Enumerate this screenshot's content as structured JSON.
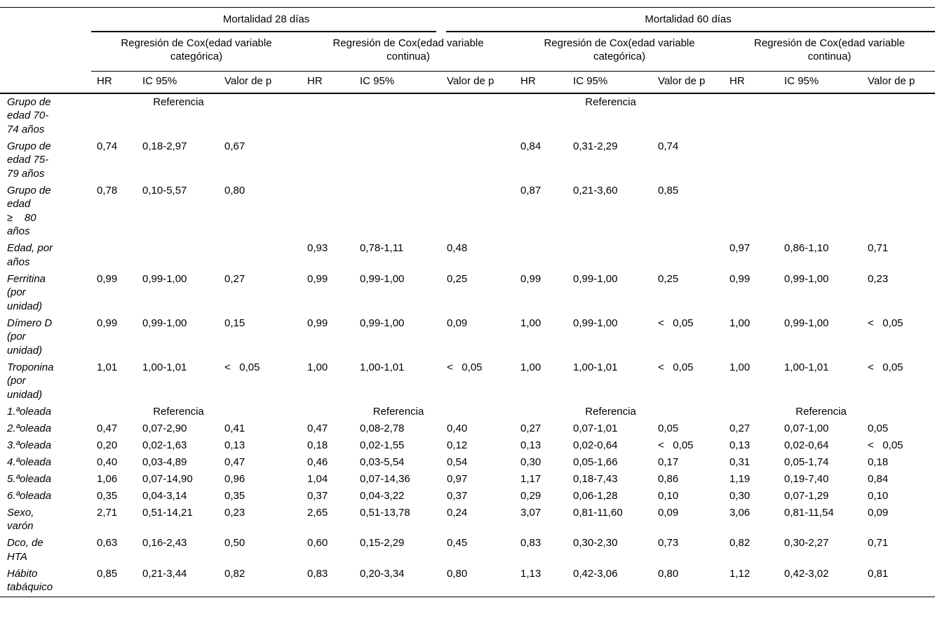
{
  "colors": {
    "text": "#000000",
    "background": "#ffffff",
    "rule": "#000000"
  },
  "table": {
    "mortality_groups": [
      "Mortalidad 28 días",
      "Mortalidad 60 días"
    ],
    "model_groups": [
      "Regresión de Cox(edad variable\ncategórica)",
      "Regresión de Cox(edad variable\ncontinua)"
    ],
    "col_headers": [
      "HR",
      "IC 95%",
      "Valor de p"
    ],
    "rows": [
      {
        "label": "Grupo de\nedad 70-\n74 años",
        "cells": [
          "",
          "Referencia",
          "",
          "",
          "",
          "",
          "",
          "Referencia",
          "",
          "",
          "",
          ""
        ]
      },
      {
        "label": "Grupo de\nedad 75-\n79 años",
        "cells": [
          "0,74",
          "0,18-2,97",
          "0,67",
          "",
          "",
          "",
          "0,84",
          "0,31-2,29",
          "0,74",
          "",
          "",
          ""
        ]
      },
      {
        "label": "Grupo de\nedad\n≥    80\naños",
        "cells": [
          "0,78",
          "0,10-5,57",
          "0,80",
          "",
          "",
          "",
          "0,87",
          "0,21-3,60",
          "0,85",
          "",
          "",
          ""
        ]
      },
      {
        "label": "Edad, por\naños",
        "cells": [
          "",
          "",
          "",
          "0,93",
          "0,78-1,11",
          "0,48",
          "",
          "",
          "",
          "0,97",
          "0,86-1,10",
          "0,71"
        ]
      },
      {
        "label": "Ferritina\n(por\nunidad)",
        "cells": [
          "0,99",
          "0,99-1,00",
          "0,27",
          "0,99",
          "0,99-1,00",
          "0,25",
          "0,99",
          "0,99-1,00",
          "0,25",
          "0,99",
          "0,99-1,00",
          "0,23"
        ]
      },
      {
        "label": "Dímero D\n(por\nunidad)",
        "cells": [
          "0,99",
          "0,99-1,00",
          "0,15",
          "0,99",
          "0,99-1,00",
          "0,09",
          "1,00",
          "0,99-1,00",
          "<   0,05",
          "1,00",
          "0,99-1,00",
          "<   0,05"
        ]
      },
      {
        "label": "Troponina\n(por\nunidad)",
        "cells": [
          "1,01",
          "1,00-1,01",
          "<   0,05",
          "1,00",
          "1,00-1,01",
          "<   0,05",
          "1,00",
          "1,00-1,01",
          "<   0,05",
          "1,00",
          "1,00-1,01",
          "<   0,05"
        ]
      },
      {
        "label": "1.ªoleada",
        "cells": [
          "",
          "Referencia",
          "",
          "",
          "Referencia",
          "",
          "",
          "Referencia",
          "",
          "",
          "Referencia",
          ""
        ]
      },
      {
        "label": "2.ªoleada",
        "cells": [
          "0,47",
          "0,07-2,90",
          "0,41",
          "0,47",
          "0,08-2,78",
          "0,40",
          "0,27",
          "0,07-1,01",
          "0,05",
          "0,27",
          "0,07-1,00",
          "0,05"
        ]
      },
      {
        "label": "3.ªoleada",
        "cells": [
          "0,20",
          "0,02-1,63",
          "0,13",
          "0,18",
          "0,02-1,55",
          "0,12",
          "0,13",
          "0,02-0,64",
          "<   0,05",
          "0,13",
          "0,02-0,64",
          "<   0,05"
        ]
      },
      {
        "label": "4.ªoleada",
        "cells": [
          "0,40",
          "0,03-4,89",
          "0,47",
          "0,46",
          "0,03-5,54",
          "0,54",
          "0,30",
          "0,05-1,66",
          "0,17",
          "0,31",
          "0,05-1,74",
          "0,18"
        ]
      },
      {
        "label": "5.ªoleada",
        "cells": [
          "1,06",
          "0,07-14,90",
          "0,96",
          "1,04",
          "0,07-14,36",
          "0,97",
          "1,17",
          "0,18-7,43",
          "0,86",
          "1,19",
          "0,19-7,40",
          "0,84"
        ]
      },
      {
        "label": "6.ªoleada",
        "cells": [
          "0,35",
          "0,04-3,14",
          "0,35",
          "0,37",
          "0,04-3,22",
          "0,37",
          "0,29",
          "0,06-1,28",
          "0,10",
          "0,30",
          "0,07-1,29",
          "0,10"
        ]
      },
      {
        "label": "Sexo,\nvarón",
        "cells": [
          "2,71",
          "0,51-14,21",
          "0,23",
          "2,65",
          "0,51-13,78",
          "0,24",
          "3,07",
          "0,81-11,60",
          "0,09",
          "3,06",
          "0,81-11,54",
          "0,09"
        ]
      },
      {
        "label": "Dco, de\nHTA",
        "cells": [
          "0,63",
          "0,16-2,43",
          "0,50",
          "0,60",
          "0,15-2,29",
          "0,45",
          "0,83",
          "0,30-2,30",
          "0,73",
          "0,82",
          "0,30-2,27",
          "0,71"
        ]
      },
      {
        "label": "Hábito\ntabáquico",
        "cells": [
          "0,85",
          "0,21-3,44",
          "0,82",
          "0,83",
          "0,20-3,34",
          "0,80",
          "1,13",
          "0,42-3,06",
          "0,80",
          "1,12",
          "0,42-3,02",
          "0,81"
        ]
      }
    ]
  }
}
